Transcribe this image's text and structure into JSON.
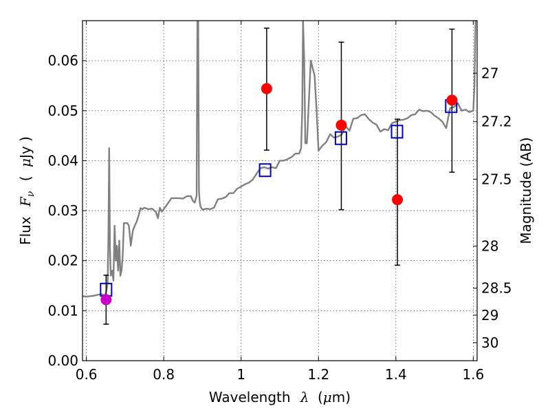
{
  "chart_data": {
    "type": "scatter",
    "title": "",
    "xlabel_text": "Wavelength",
    "xlabel_symbol": "λ",
    "xlabel_unit_open": "(",
    "xlabel_unit_mu": "μ",
    "xlabel_unit_rest": "m)",
    "ylabel_text": "Flux",
    "ylabel_symbol": "F",
    "ylabel_subscript": "ν",
    "ylabel_unit_open": "(",
    "ylabel_unit_mu": "μ",
    "ylabel_unit_rest": "Jy )",
    "y2label": "Magnitude (AB)",
    "xlim": [
      0.59,
      1.61
    ],
    "ylim": [
      0.0,
      0.068
    ],
    "grid": true,
    "x_ticks": [
      0.6,
      0.8,
      1.0,
      1.2,
      1.4,
      1.6
    ],
    "x_tick_labels": [
      "0.6",
      "0.8",
      "1",
      "1.2",
      "1.4",
      "1.6"
    ],
    "y_ticks": [
      0.0,
      0.01,
      0.02,
      0.03,
      0.04,
      0.05,
      0.06
    ],
    "y_tick_labels": [
      "0.00",
      "0.01",
      "0.02",
      "0.03",
      "0.04",
      "0.05",
      "0.06"
    ],
    "y2_ticks": [
      {
        "label": "27",
        "flux": 0.0575
      },
      {
        "label": "27.2",
        "flux": 0.0478
      },
      {
        "label": "27.5",
        "flux": 0.0363
      },
      {
        "label": "28",
        "flux": 0.0229
      },
      {
        "label": "28.5",
        "flux": 0.0145
      },
      {
        "label": "29",
        "flux": 0.0091
      },
      {
        "label": "30",
        "flux": 0.0036
      }
    ],
    "model_spectrum": {
      "color": "#808080",
      "x": [
        0.59,
        0.6,
        0.62,
        0.63,
        0.64,
        0.645,
        0.648,
        0.652,
        0.655,
        0.657,
        0.659,
        0.661,
        0.663,
        0.667,
        0.67,
        0.673,
        0.676,
        0.679,
        0.682,
        0.685,
        0.688,
        0.691,
        0.694,
        0.697,
        0.7,
        0.703,
        0.706,
        0.71,
        0.715,
        0.72,
        0.725,
        0.73,
        0.735,
        0.74,
        0.745,
        0.75,
        0.76,
        0.77,
        0.78,
        0.785,
        0.79,
        0.795,
        0.8,
        0.81,
        0.82,
        0.83,
        0.84,
        0.85,
        0.86,
        0.87,
        0.875,
        0.88,
        0.885,
        0.887,
        0.889,
        0.891,
        0.893,
        0.895,
        0.9,
        0.91,
        0.92,
        0.93,
        0.94,
        0.95,
        0.96,
        0.97,
        0.98,
        0.99,
        1.0,
        1.01,
        1.02,
        1.03,
        1.04,
        1.05,
        1.06,
        1.07,
        1.08,
        1.09,
        1.1,
        1.11,
        1.12,
        1.13,
        1.14,
        1.15,
        1.155,
        1.158,
        1.16,
        1.163,
        1.166,
        1.17,
        1.18,
        1.19,
        1.195,
        1.2,
        1.21,
        1.22,
        1.23,
        1.24,
        1.25,
        1.26,
        1.27,
        1.28,
        1.29,
        1.3,
        1.31,
        1.32,
        1.33,
        1.34,
        1.35,
        1.36,
        1.37,
        1.38,
        1.39,
        1.4,
        1.41,
        1.42,
        1.43,
        1.44,
        1.45,
        1.46,
        1.47,
        1.48,
        1.49,
        1.5,
        1.51,
        1.52,
        1.53,
        1.54,
        1.55,
        1.56,
        1.57,
        1.58,
        1.59,
        1.6,
        1.603,
        1.606,
        1.61
      ],
      "y": [
        0.0129,
        0.0128,
        0.013,
        0.0132,
        0.0133,
        0.0131,
        0.013,
        0.014,
        0.0155,
        0.025,
        0.0425,
        0.022,
        0.017,
        0.018,
        0.016,
        0.027,
        0.02,
        0.023,
        0.018,
        0.024,
        0.017,
        0.018,
        0.021,
        0.0275,
        0.0275,
        0.0275,
        0.0275,
        0.027,
        0.023,
        0.026,
        0.027,
        0.0278,
        0.029,
        0.0305,
        0.0303,
        0.0306,
        0.0303,
        0.0304,
        0.0297,
        0.0285,
        0.0306,
        0.0298,
        0.0303,
        0.0314,
        0.0325,
        0.0325,
        0.0325,
        0.0324,
        0.0329,
        0.0329,
        0.032,
        0.0316,
        0.033,
        0.068,
        0.068,
        0.034,
        0.0318,
        0.0308,
        0.0302,
        0.0304,
        0.0303,
        0.0306,
        0.0323,
        0.0324,
        0.0327,
        0.0335,
        0.0335,
        0.0344,
        0.0348,
        0.0353,
        0.0356,
        0.0362,
        0.0374,
        0.0385,
        0.0387,
        0.0384,
        0.0387,
        0.0385,
        0.04,
        0.04,
        0.0403,
        0.0407,
        0.0414,
        0.0414,
        0.0425,
        0.05,
        0.068,
        0.06,
        0.0435,
        0.0435,
        0.06,
        0.057,
        0.05,
        0.042,
        0.043,
        0.0437,
        0.0453,
        0.0446,
        0.0448,
        0.0452,
        0.0469,
        0.046,
        0.0484,
        0.0485,
        0.0491,
        0.0493,
        0.0483,
        0.0476,
        0.0472,
        0.0458,
        0.0463,
        0.0461,
        0.0475,
        0.0478,
        0.0481,
        0.0482,
        0.0485,
        0.0491,
        0.0493,
        0.0502,
        0.0499,
        0.05,
        0.0497,
        0.049,
        0.0485,
        0.0478,
        0.0465,
        0.0505,
        0.0507,
        0.0515,
        0.05,
        0.0502,
        0.0497,
        0.05,
        0.055,
        0.068,
        0.068
      ]
    },
    "model_photometry": {
      "color": "#0000cc",
      "x": [
        0.651,
        1.062,
        1.258,
        1.403,
        1.543
      ],
      "y": [
        0.0142,
        0.0381,
        0.0445,
        0.0458,
        0.0509
      ]
    },
    "observed": {
      "colors": [
        "#cc00cc",
        "#ff0000",
        "#ff0000",
        "#ff0000",
        "#ff0000"
      ],
      "x": [
        0.651,
        1.066,
        1.259,
        1.404,
        1.545
      ],
      "y": [
        0.0122,
        0.0544,
        0.0471,
        0.0322,
        0.0521
      ],
      "err_low": [
        0.0049,
        0.0123,
        0.0169,
        0.0131,
        0.0144
      ],
      "err_high": [
        0.0049,
        0.0121,
        0.0166,
        0.0161,
        0.0142
      ]
    }
  }
}
